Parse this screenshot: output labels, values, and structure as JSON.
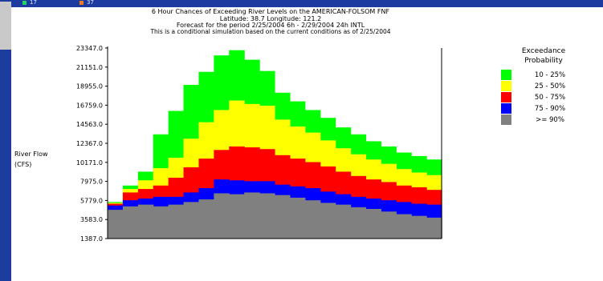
{
  "header": {
    "left_values": [
      "17",
      "37"
    ],
    "left_colors": [
      "#1ed760",
      "#f07b1c"
    ]
  },
  "chart_data": {
    "type": "area",
    "title": "6 Hour Chances of Exceeding River Levels on the AMERICAN-FOLSOM FNF",
    "subtitle_lines": [
      "Latitude: 38.7    Longitude: 121.2",
      "Forecast for the period 2/25/2004 6h - 2/29/2004 24h INTL",
      "This is a conditional simulation based on the current conditions as of 2/25/2004"
    ],
    "ylabel_lines": [
      "River Flow",
      "(CFS)"
    ],
    "yticks": [
      "23347.0",
      "21151.0",
      "18955.0",
      "16759.0",
      "14563.0",
      "12367.0",
      "10171.0",
      "7975.0",
      "5779.0",
      "3583.0",
      "1387.0"
    ],
    "ylim": [
      1387,
      23347
    ],
    "legend_title_lines": [
      "Exceedance",
      "Probability"
    ],
    "legend": [
      {
        "label": "10 - 25%",
        "color": "#00ff00"
      },
      {
        "label": "25 - 50%",
        "color": "#ffff00"
      },
      {
        "label": "50 - 75%",
        "color": "#ff0000"
      },
      {
        "label": "75 - 90%",
        "color": "#0000ff"
      },
      {
        "label": ">= 90%",
        "color": "#808080"
      }
    ],
    "legend_placement": "right",
    "grid": false,
    "series_colors": [
      "#808080",
      "#0000ff",
      "#ff0000",
      "#ffff00",
      "#00ff00"
    ],
    "series": [
      {
        "values": [
          4700,
          5100,
          5300,
          5100,
          5300,
          5600,
          5900,
          6600,
          6500,
          6700,
          6600,
          6400,
          6100,
          5800,
          5500,
          5300,
          5000,
          4800,
          4500,
          4200,
          4000,
          3800
        ]
      },
      {
        "values": [
          5200,
          5800,
          6000,
          6200,
          6200,
          6700,
          7200,
          8200,
          8100,
          8000,
          8000,
          7600,
          7400,
          7200,
          6800,
          6500,
          6200,
          6000,
          5800,
          5600,
          5400,
          5300
        ]
      },
      {
        "values": [
          5400,
          6700,
          7100,
          7500,
          8400,
          9600,
          10600,
          11600,
          12000,
          11900,
          11700,
          11000,
          10600,
          10200,
          9700,
          9100,
          8600,
          8200,
          7900,
          7500,
          7300,
          7000
        ]
      },
      {
        "values": [
          5500,
          7100,
          8100,
          9500,
          10700,
          12900,
          14800,
          16200,
          17300,
          16900,
          16700,
          15100,
          14300,
          13600,
          12700,
          11800,
          11100,
          10500,
          10000,
          9400,
          9000,
          8700
        ]
      },
      {
        "values": [
          5600,
          7500,
          9100,
          13400,
          16100,
          19100,
          20600,
          22500,
          23100,
          22000,
          20700,
          18200,
          17200,
          16200,
          15300,
          14200,
          13400,
          12600,
          12000,
          11300,
          10900,
          10500
        ]
      }
    ],
    "x_count": 22
  }
}
